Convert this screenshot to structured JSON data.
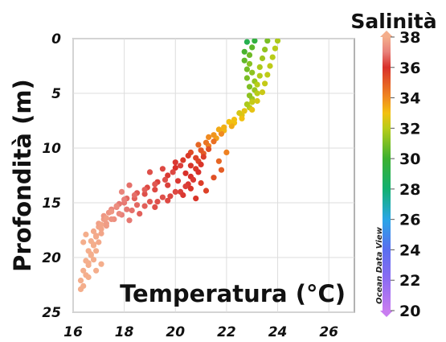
{
  "chart_data": {
    "type": "scatter",
    "title": "",
    "xlabel": "Temperatura (°C)",
    "ylabel": "Profondità (m)",
    "colorbar_label": "Salinità",
    "watermark": "Ocean Data View",
    "xlim": [
      16,
      27
    ],
    "ylim": [
      25,
      0
    ],
    "y_inverted": true,
    "grid": true,
    "x_ticks": [
      "16",
      "18",
      "20",
      "22",
      "24",
      "26"
    ],
    "y_ticks": [
      "0",
      "5",
      "10",
      "15",
      "20",
      "25"
    ],
    "colorbar_range": [
      20,
      38
    ],
    "colorbar_ticks": [
      "38",
      "36",
      "34",
      "32",
      "30",
      "28",
      "26",
      "24",
      "22",
      "20"
    ],
    "colorbar_colors": [
      {
        "value": 20,
        "color": "#c87cf0"
      },
      {
        "value": 22,
        "color": "#8e6cf2"
      },
      {
        "value": 24,
        "color": "#5a6ef0"
      },
      {
        "value": 26,
        "color": "#2aa6e6"
      },
      {
        "value": 28,
        "color": "#12b070"
      },
      {
        "value": 30,
        "color": "#3cb030"
      },
      {
        "value": 32,
        "color": "#b8cc18"
      },
      {
        "value": 33,
        "color": "#f2c010"
      },
      {
        "value": 34,
        "color": "#f08a20"
      },
      {
        "value": 36,
        "color": "#d8302a"
      },
      {
        "value": 37,
        "color": "#e8807a"
      },
      {
        "value": 38,
        "color": "#f4ae8c"
      }
    ],
    "series": [
      {
        "points": [
          {
            "x": 23.1,
            "y": 0.2,
            "s": 29.5
          },
          {
            "x": 23.0,
            "y": 0.8,
            "s": 30.5
          },
          {
            "x": 22.9,
            "y": 1.5,
            "s": 30.8
          },
          {
            "x": 22.9,
            "y": 2.3,
            "s": 31.2
          },
          {
            "x": 23.0,
            "y": 3.1,
            "s": 31.3
          },
          {
            "x": 23.1,
            "y": 3.9,
            "s": 31.4
          },
          {
            "x": 23.1,
            "y": 4.7,
            "s": 31.5
          },
          {
            "x": 23.0,
            "y": 5.5,
            "s": 31.6
          },
          {
            "x": 22.9,
            "y": 6.3,
            "s": 32.0
          },
          {
            "x": 22.6,
            "y": 7.0,
            "s": 32.6
          },
          {
            "x": 22.3,
            "y": 7.7,
            "s": 33.0
          },
          {
            "x": 21.9,
            "y": 8.4,
            "s": 33.2
          },
          {
            "x": 21.6,
            "y": 9.1,
            "s": 33.6
          },
          {
            "x": 21.3,
            "y": 9.8,
            "s": 34.2
          },
          {
            "x": 21.1,
            "y": 10.5,
            "s": 35.0
          },
          {
            "x": 20.9,
            "y": 11.2,
            "s": 35.5
          },
          {
            "x": 20.8,
            "y": 11.9,
            "s": 35.8
          },
          {
            "x": 20.6,
            "y": 12.6,
            "s": 36.0
          },
          {
            "x": 20.5,
            "y": 13.3,
            "s": 36.1
          },
          {
            "x": 20.2,
            "y": 14.0,
            "s": 36.2
          },
          {
            "x": 19.8,
            "y": 14.4,
            "s": 36.3
          },
          {
            "x": 19.3,
            "y": 14.9,
            "s": 36.4
          },
          {
            "x": 18.8,
            "y": 15.3,
            "s": 36.6
          },
          {
            "x": 18.3,
            "y": 15.7,
            "s": 36.8
          },
          {
            "x": 17.9,
            "y": 16.1,
            "s": 37.0
          },
          {
            "x": 17.6,
            "y": 16.5,
            "s": 37.3
          },
          {
            "x": 17.3,
            "y": 16.9,
            "s": 37.6
          },
          {
            "x": 17.1,
            "y": 17.4,
            "s": 37.8
          },
          {
            "x": 16.9,
            "y": 18.1,
            "s": 37.9
          },
          {
            "x": 16.8,
            "y": 18.9,
            "s": 38.0
          },
          {
            "x": 16.7,
            "y": 19.8,
            "s": 38.0
          },
          {
            "x": 16.6,
            "y": 20.7,
            "s": 38.0
          },
          {
            "x": 16.5,
            "y": 21.6,
            "s": 38.0
          },
          {
            "x": 16.4,
            "y": 22.6,
            "s": 38.0
          }
        ]
      },
      {
        "points": [
          {
            "x": 23.6,
            "y": 0.2,
            "s": 31.0
          },
          {
            "x": 23.5,
            "y": 1.0,
            "s": 31.4
          },
          {
            "x": 23.4,
            "y": 1.8,
            "s": 31.6
          },
          {
            "x": 23.3,
            "y": 2.6,
            "s": 31.8
          },
          {
            "x": 23.3,
            "y": 3.4,
            "s": 31.9
          },
          {
            "x": 23.2,
            "y": 4.2,
            "s": 32.0
          },
          {
            "x": 23.2,
            "y": 5.0,
            "s": 32.0
          },
          {
            "x": 23.0,
            "y": 5.8,
            "s": 32.2
          },
          {
            "x": 22.7,
            "y": 6.6,
            "s": 32.8
          },
          {
            "x": 22.3,
            "y": 7.4,
            "s": 33.0
          },
          {
            "x": 21.9,
            "y": 8.1,
            "s": 33.3
          },
          {
            "x": 21.5,
            "y": 8.8,
            "s": 33.8
          },
          {
            "x": 21.2,
            "y": 9.5,
            "s": 34.5
          },
          {
            "x": 21.0,
            "y": 10.2,
            "s": 35.2
          },
          {
            "x": 20.8,
            "y": 10.9,
            "s": 35.6
          },
          {
            "x": 20.6,
            "y": 11.6,
            "s": 35.9
          },
          {
            "x": 20.4,
            "y": 12.3,
            "s": 36.0
          },
          {
            "x": 20.1,
            "y": 13.0,
            "s": 36.1
          },
          {
            "x": 19.7,
            "y": 13.4,
            "s": 36.2
          },
          {
            "x": 19.2,
            "y": 13.8,
            "s": 36.3
          },
          {
            "x": 18.8,
            "y": 14.2,
            "s": 36.4
          },
          {
            "x": 18.4,
            "y": 14.6,
            "s": 36.6
          },
          {
            "x": 18.0,
            "y": 15.0,
            "s": 36.9
          },
          {
            "x": 17.7,
            "y": 15.4,
            "s": 37.1
          },
          {
            "x": 17.4,
            "y": 15.9,
            "s": 37.4
          },
          {
            "x": 17.2,
            "y": 16.5,
            "s": 37.6
          },
          {
            "x": 17.0,
            "y": 17.2,
            "s": 37.8
          },
          {
            "x": 16.9,
            "y": 18.0,
            "s": 37.9
          },
          {
            "x": 16.8,
            "y": 18.8,
            "s": 38.0
          },
          {
            "x": 16.7,
            "y": 19.7,
            "s": 38.0
          },
          {
            "x": 16.6,
            "y": 20.5,
            "s": 38.0
          }
        ]
      },
      {
        "points": [
          {
            "x": 24.0,
            "y": 0.2,
            "s": 31.8
          },
          {
            "x": 23.9,
            "y": 0.9,
            "s": 32.0
          },
          {
            "x": 23.8,
            "y": 1.7,
            "s": 32.0
          },
          {
            "x": 23.7,
            "y": 2.5,
            "s": 32.1
          },
          {
            "x": 23.6,
            "y": 3.3,
            "s": 32.1
          },
          {
            "x": 23.5,
            "y": 4.1,
            "s": 32.2
          },
          {
            "x": 23.4,
            "y": 4.9,
            "s": 32.3
          },
          {
            "x": 23.2,
            "y": 5.7,
            "s": 32.5
          },
          {
            "x": 23.0,
            "y": 6.5,
            "s": 32.8
          },
          {
            "x": 22.6,
            "y": 7.3,
            "s": 33.0
          },
          {
            "x": 22.2,
            "y": 8.0,
            "s": 33.4
          },
          {
            "x": 21.8,
            "y": 8.7,
            "s": 34.0
          },
          {
            "x": 21.5,
            "y": 9.4,
            "s": 34.6
          },
          {
            "x": 21.3,
            "y": 10.1,
            "s": 35.3
          },
          {
            "x": 21.1,
            "y": 10.8,
            "s": 35.7
          },
          {
            "x": 21.0,
            "y": 11.5,
            "s": 35.9
          },
          {
            "x": 20.9,
            "y": 12.2,
            "s": 36.0
          },
          {
            "x": 20.7,
            "y": 12.9,
            "s": 36.1
          },
          {
            "x": 20.4,
            "y": 13.5,
            "s": 36.2
          },
          {
            "x": 20.0,
            "y": 14.0,
            "s": 36.3
          },
          {
            "x": 19.5,
            "y": 14.5,
            "s": 36.4
          },
          {
            "x": 19.0,
            "y": 14.9,
            "s": 36.5
          },
          {
            "x": 18.5,
            "y": 15.2,
            "s": 36.7
          },
          {
            "x": 18.1,
            "y": 15.6,
            "s": 36.9
          },
          {
            "x": 17.8,
            "y": 16.0,
            "s": 37.2
          },
          {
            "x": 17.5,
            "y": 16.5,
            "s": 37.4
          },
          {
            "x": 17.3,
            "y": 17.1,
            "s": 37.6
          },
          {
            "x": 17.1,
            "y": 17.8,
            "s": 37.8
          },
          {
            "x": 17.0,
            "y": 18.6,
            "s": 37.9
          },
          {
            "x": 16.9,
            "y": 19.4,
            "s": 38.0
          },
          {
            "x": 16.8,
            "y": 20.2,
            "s": 38.0
          }
        ]
      },
      {
        "points": [
          {
            "x": 22.8,
            "y": 0.3,
            "s": 29.0
          },
          {
            "x": 22.7,
            "y": 1.2,
            "s": 30.2
          },
          {
            "x": 22.7,
            "y": 2.0,
            "s": 30.6
          },
          {
            "x": 22.8,
            "y": 2.8,
            "s": 30.9
          },
          {
            "x": 22.8,
            "y": 3.6,
            "s": 31.0
          },
          {
            "x": 22.9,
            "y": 4.4,
            "s": 31.1
          },
          {
            "x": 22.9,
            "y": 5.2,
            "s": 31.3
          },
          {
            "x": 22.8,
            "y": 6.0,
            "s": 31.8
          },
          {
            "x": 22.5,
            "y": 6.8,
            "s": 32.5
          },
          {
            "x": 22.1,
            "y": 7.6,
            "s": 33.0
          },
          {
            "x": 21.7,
            "y": 8.3,
            "s": 33.4
          },
          {
            "x": 21.3,
            "y": 9.0,
            "s": 34.0
          },
          {
            "x": 20.9,
            "y": 9.7,
            "s": 34.8
          },
          {
            "x": 20.6,
            "y": 10.4,
            "s": 35.4
          },
          {
            "x": 20.3,
            "y": 11.1,
            "s": 35.8
          },
          {
            "x": 20.0,
            "y": 11.8,
            "s": 36.0
          },
          {
            "x": 19.7,
            "y": 12.5,
            "s": 36.1
          },
          {
            "x": 19.3,
            "y": 13.1,
            "s": 36.2
          },
          {
            "x": 18.9,
            "y": 13.6,
            "s": 36.3
          },
          {
            "x": 18.5,
            "y": 14.1,
            "s": 36.5
          },
          {
            "x": 18.1,
            "y": 14.6,
            "s": 36.7
          },
          {
            "x": 17.8,
            "y": 15.1,
            "s": 36.9
          },
          {
            "x": 17.5,
            "y": 15.6,
            "s": 37.2
          },
          {
            "x": 17.2,
            "y": 16.2,
            "s": 37.5
          },
          {
            "x": 17.0,
            "y": 16.9,
            "s": 37.7
          },
          {
            "x": 16.8,
            "y": 17.6,
            "s": 37.9
          },
          {
            "x": 16.7,
            "y": 18.5,
            "s": 38.0
          },
          {
            "x": 16.6,
            "y": 19.4,
            "s": 38.0
          },
          {
            "x": 16.5,
            "y": 20.3,
            "s": 38.0
          },
          {
            "x": 16.4,
            "y": 21.2,
            "s": 38.0
          },
          {
            "x": 16.3,
            "y": 22.1,
            "s": 38.0
          },
          {
            "x": 16.3,
            "y": 22.9,
            "s": 38.0
          }
        ]
      },
      {
        "points": [
          {
            "x": 20.2,
            "y": 11.6,
            "s": 36.2
          },
          {
            "x": 19.9,
            "y": 12.2,
            "s": 36.3
          },
          {
            "x": 19.6,
            "y": 12.9,
            "s": 36.4
          },
          {
            "x": 19.2,
            "y": 13.3,
            "s": 36.5
          },
          {
            "x": 18.8,
            "y": 13.8,
            "s": 36.6
          },
          {
            "x": 18.4,
            "y": 14.3,
            "s": 36.8
          },
          {
            "x": 18.0,
            "y": 14.7,
            "s": 37.0
          },
          {
            "x": 17.7,
            "y": 15.3,
            "s": 37.3
          },
          {
            "x": 17.5,
            "y": 15.8,
            "s": 37.5
          },
          {
            "x": 17.3,
            "y": 16.4,
            "s": 37.7
          },
          {
            "x": 17.1,
            "y": 17.0,
            "s": 37.8
          },
          {
            "x": 18.2,
            "y": 13.4,
            "s": 36.8
          },
          {
            "x": 17.9,
            "y": 14.0,
            "s": 37.1
          },
          {
            "x": 19.0,
            "y": 12.2,
            "s": 36.4
          },
          {
            "x": 19.5,
            "y": 11.9,
            "s": 36.3
          },
          {
            "x": 20.0,
            "y": 11.3,
            "s": 36.1
          },
          {
            "x": 20.5,
            "y": 10.7,
            "s": 35.8
          },
          {
            "x": 18.6,
            "y": 16.0,
            "s": 36.6
          },
          {
            "x": 18.2,
            "y": 16.6,
            "s": 36.9
          },
          {
            "x": 19.2,
            "y": 15.4,
            "s": 36.4
          },
          {
            "x": 19.7,
            "y": 14.8,
            "s": 36.3
          },
          {
            "x": 20.3,
            "y": 14.3,
            "s": 36.1
          },
          {
            "x": 20.6,
            "y": 13.7,
            "s": 35.9
          },
          {
            "x": 21.0,
            "y": 13.2,
            "s": 35.7
          },
          {
            "x": 20.8,
            "y": 14.6,
            "s": 35.9
          },
          {
            "x": 21.2,
            "y": 13.9,
            "s": 35.6
          },
          {
            "x": 21.5,
            "y": 12.7,
            "s": 35.3
          },
          {
            "x": 21.8,
            "y": 12.0,
            "s": 35.0
          },
          {
            "x": 21.7,
            "y": 11.2,
            "s": 34.8
          },
          {
            "x": 22.0,
            "y": 10.4,
            "s": 34.2
          },
          {
            "x": 16.6,
            "y": 21.8,
            "s": 38.0
          },
          {
            "x": 16.9,
            "y": 21.2,
            "s": 38.0
          },
          {
            "x": 17.1,
            "y": 20.6,
            "s": 38.0
          },
          {
            "x": 16.5,
            "y": 17.9,
            "s": 38.0
          },
          {
            "x": 16.4,
            "y": 18.6,
            "s": 38.0
          }
        ]
      }
    ]
  }
}
